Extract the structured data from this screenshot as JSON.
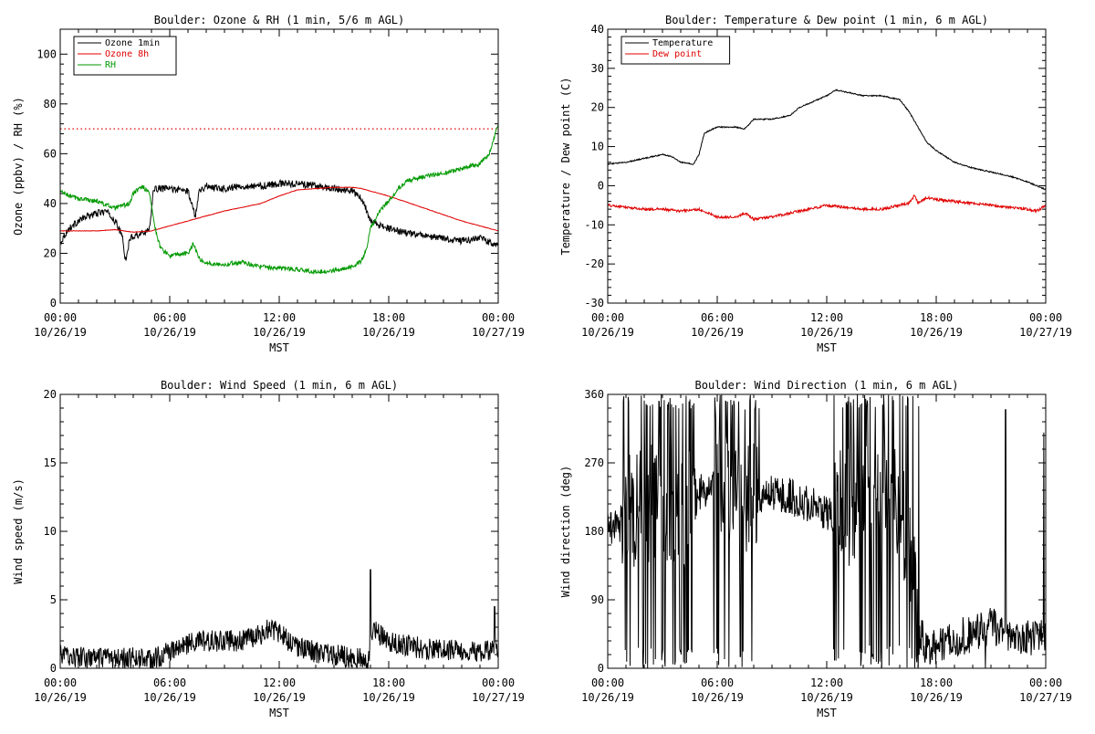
{
  "chart_data": [
    {
      "type": "line",
      "title": "Boulder: Ozone & RH (1 min, 5/6 m AGL)",
      "ylabel": "Ozone (ppbv) / RH (%)",
      "xlabel": "MST",
      "xlim_hours": [
        0,
        24
      ],
      "ylim": [
        0,
        110
      ],
      "yticks": [
        0,
        20,
        40,
        60,
        80,
        100
      ],
      "xticks": [
        {
          "hour": 0,
          "time": "00:00",
          "date": "10/26/19"
        },
        {
          "hour": 6,
          "time": "06:00",
          "date": "10/26/19"
        },
        {
          "hour": 12,
          "time": "12:00",
          "date": "10/26/19"
        },
        {
          "hour": 18,
          "time": "18:00",
          "date": "10/26/19"
        },
        {
          "hour": 24,
          "time": "00:00",
          "date": "10/27/19"
        }
      ],
      "legend_position": "top-left",
      "reference_line": {
        "y": 70,
        "color": "#e00000",
        "style": "dotted"
      },
      "series": [
        {
          "name": "Ozone 1min",
          "color": "#000000",
          "noise": 1.4,
          "x": [
            0,
            0.2,
            0.5,
            1,
            1.5,
            2,
            2.5,
            3,
            3.4,
            3.6,
            3.8,
            4,
            4.5,
            4.9,
            5.1,
            5.3,
            6,
            7,
            7.4,
            7.6,
            8,
            9,
            10,
            11,
            12,
            13,
            14,
            15,
            16,
            16.5,
            16.8,
            17,
            17.5,
            18,
            19,
            20,
            21,
            22,
            23,
            23.7,
            24
          ],
          "y": [
            24,
            27,
            30,
            33,
            35,
            36,
            37,
            33,
            27,
            16,
            26,
            27,
            28,
            30,
            45,
            46,
            46,
            45,
            35,
            45,
            47,
            46,
            47,
            47,
            48,
            48,
            47,
            46,
            45,
            42,
            37,
            33,
            31,
            30,
            28,
            27,
            26,
            25,
            26,
            24,
            23
          ]
        },
        {
          "name": "Ozone 8h",
          "color": "#e00000",
          "noise": 0.1,
          "x": [
            0,
            2,
            3,
            4,
            5,
            6,
            7,
            8,
            9,
            10,
            11,
            12,
            13,
            14,
            15,
            16,
            16.5,
            17,
            18,
            19,
            20,
            21,
            22,
            23,
            24
          ],
          "y": [
            29,
            29,
            29.5,
            28.5,
            29,
            31,
            33,
            35,
            37,
            38.5,
            40,
            43,
            45.5,
            46,
            46.5,
            46.5,
            46,
            45,
            43,
            40.5,
            38,
            35.5,
            33,
            31,
            29
          ]
        },
        {
          "name": "RH",
          "color": "#009900",
          "noise": 0.9,
          "x": [
            0,
            0.5,
            1,
            2,
            3,
            3.8,
            4,
            4.5,
            4.9,
            5.2,
            5.5,
            6,
            7,
            7.3,
            7.6,
            8,
            9,
            10,
            11,
            12,
            13,
            14,
            15,
            16,
            16.5,
            16.8,
            17,
            17.5,
            18,
            18.5,
            19,
            20,
            21,
            22,
            23,
            23.5,
            23.8,
            24
          ],
          "y": [
            45,
            43,
            42,
            41,
            38,
            40,
            44,
            47,
            44,
            30,
            22,
            19,
            20,
            24,
            18,
            16,
            15.5,
            16.5,
            14.5,
            14,
            13.5,
            12.5,
            13,
            14.5,
            17,
            22,
            30,
            37,
            41,
            46,
            49,
            51,
            52,
            54,
            56,
            60,
            67,
            72
          ]
        }
      ]
    },
    {
      "type": "line",
      "title": "Boulder: Temperature & Dew point (1 min, 6 m AGL)",
      "ylabel": "Temperature / Dew point (C)",
      "xlabel": "MST",
      "xlim_hours": [
        0,
        24
      ],
      "ylim": [
        -30,
        40
      ],
      "yticks": [
        -30,
        -20,
        -10,
        0,
        10,
        20,
        30,
        40
      ],
      "xticks": [
        {
          "hour": 0,
          "time": "00:00",
          "date": "10/26/19"
        },
        {
          "hour": 6,
          "time": "06:00",
          "date": "10/26/19"
        },
        {
          "hour": 12,
          "time": "12:00",
          "date": "10/26/19"
        },
        {
          "hour": 18,
          "time": "18:00",
          "date": "10/26/19"
        },
        {
          "hour": 24,
          "time": "00:00",
          "date": "10/27/19"
        }
      ],
      "legend_position": "top-left",
      "series": [
        {
          "name": "Temperature",
          "color": "#000000",
          "noise": 0.15,
          "x": [
            0,
            1,
            2,
            3,
            3.5,
            4,
            4.7,
            5,
            5.3,
            6,
            7,
            7.5,
            8,
            9,
            10,
            10.5,
            11,
            12,
            12.5,
            13,
            14,
            15,
            16,
            16.5,
            17,
            17.5,
            18,
            19,
            20,
            21,
            22,
            23,
            24
          ],
          "y": [
            5.5,
            6,
            7,
            8,
            7.5,
            6,
            5.5,
            8,
            13.5,
            15,
            15,
            14.5,
            17,
            17,
            18,
            20,
            21,
            23,
            24.5,
            24,
            23,
            23,
            22,
            19,
            15,
            11,
            9,
            6,
            4.5,
            3.5,
            2.5,
            1,
            -1
          ]
        },
        {
          "name": "Dew point",
          "color": "#e00000",
          "noise": 0.35,
          "x": [
            0,
            1,
            2,
            3,
            4,
            5,
            6,
            7,
            7.5,
            8,
            9,
            10,
            11,
            12,
            13,
            14,
            15,
            16,
            16.5,
            16.8,
            17,
            17.5,
            18,
            19,
            20,
            21,
            22,
            23,
            23.5,
            24
          ],
          "y": [
            -5,
            -5.5,
            -6,
            -6,
            -6.5,
            -6,
            -8,
            -8,
            -7,
            -8.5,
            -8,
            -7,
            -6,
            -5,
            -5.5,
            -6,
            -6,
            -5,
            -4.5,
            -2.5,
            -4.5,
            -3,
            -3.5,
            -4,
            -4.5,
            -5,
            -5.5,
            -6,
            -6.5,
            -5
          ]
        }
      ]
    },
    {
      "type": "line",
      "title": "Boulder: Wind Speed (1 min, 6 m AGL)",
      "ylabel": "Wind speed (m/s)",
      "xlabel": "MST",
      "xlim_hours": [
        0,
        24
      ],
      "ylim": [
        0,
        20
      ],
      "yticks": [
        0,
        5,
        10,
        15,
        20
      ],
      "xticks": [
        {
          "hour": 0,
          "time": "00:00",
          "date": "10/26/19"
        },
        {
          "hour": 6,
          "time": "06:00",
          "date": "10/26/19"
        },
        {
          "hour": 12,
          "time": "12:00",
          "date": "10/26/19"
        },
        {
          "hour": 18,
          "time": "18:00",
          "date": "10/26/19"
        },
        {
          "hour": 24,
          "time": "00:00",
          "date": "10/27/19"
        }
      ],
      "series": [
        {
          "name": "",
          "color": "#000000",
          "noise": 0.8,
          "spikes": [
            [
              17.0,
              7.2
            ],
            [
              23.8,
              4.5
            ]
          ],
          "x": [
            0,
            1,
            2,
            3,
            4,
            5,
            6,
            7,
            8,
            9,
            10,
            11,
            11.5,
            12,
            13,
            14,
            15,
            16,
            16.9,
            17.1,
            18,
            19,
            20,
            21,
            22,
            23,
            24
          ],
          "y": [
            1,
            0.8,
            0.7,
            0.6,
            0.8,
            0.6,
            1.2,
            1.8,
            2,
            2,
            2,
            2.5,
            3,
            2.5,
            1.6,
            1.2,
            1,
            0.8,
            0.6,
            2.8,
            2,
            1.7,
            1.4,
            1.3,
            1.3,
            1.2,
            1.5
          ]
        }
      ]
    },
    {
      "type": "line",
      "title": "Boulder: Wind Direction (1 min, 6 m AGL)",
      "ylabel": "Wind direction (deg)",
      "xlabel": "MST",
      "xlim_hours": [
        0,
        24
      ],
      "ylim": [
        0,
        360
      ],
      "yticks": [
        0,
        90,
        180,
        270,
        360
      ],
      "xticks": [
        {
          "hour": 0,
          "time": "00:00",
          "date": "10/26/19"
        },
        {
          "hour": 6,
          "time": "06:00",
          "date": "10/26/19"
        },
        {
          "hour": 12,
          "time": "12:00",
          "date": "10/26/19"
        },
        {
          "hour": 18,
          "time": "18:00",
          "date": "10/26/19"
        },
        {
          "hour": 24,
          "time": "00:00",
          "date": "10/27/19"
        }
      ],
      "series": [
        {
          "name": "",
          "color": "#000000",
          "noise": 25,
          "chaotic_ranges": [
            [
              0.8,
              4.8
            ],
            [
              5.8,
              8.3
            ],
            [
              12.3,
              17.1
            ]
          ],
          "spikes": [
            [
              20.7,
              0
            ],
            [
              21.8,
              340
            ],
            [
              23.9,
              310
            ]
          ],
          "x": [
            0,
            0.5,
            1,
            2,
            3,
            4,
            5,
            5.5,
            6,
            7,
            8,
            8.5,
            9,
            10,
            11,
            12,
            13,
            14,
            15,
            16,
            16.5,
            17,
            17.5,
            18,
            19,
            20,
            21,
            22,
            23,
            24
          ],
          "y": [
            190,
            185,
            200,
            210,
            220,
            200,
            230,
            240,
            250,
            210,
            240,
            220,
            230,
            225,
            215,
            205,
            210,
            220,
            230,
            210,
            160,
            60,
            20,
            30,
            40,
            45,
            55,
            45,
            40,
            45
          ]
        }
      ]
    }
  ]
}
